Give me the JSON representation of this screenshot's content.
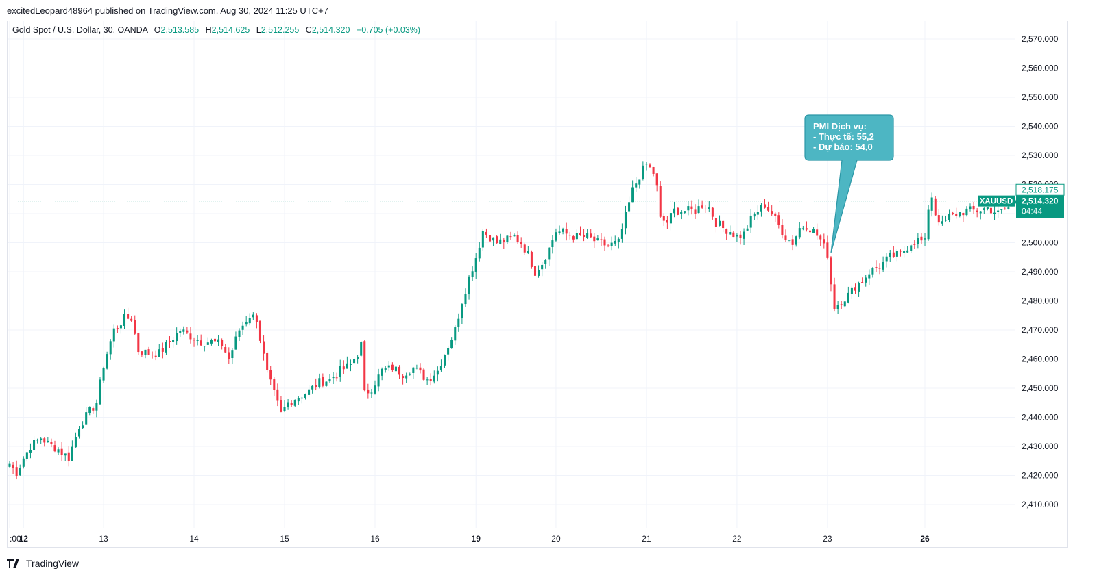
{
  "publisher_line": "excitedLeopard48964 published on TradingView.com, Aug 30, 2024 11:25 UTC+7",
  "legend": {
    "symbol": "Gold Spot / U.S. Dollar, 30, OANDA",
    "o_label": "O",
    "o_value": "2,513.585",
    "h_label": "H",
    "h_value": "2,514.625",
    "l_label": "L",
    "l_value": "2,512.255",
    "c_label": "C",
    "c_value": "2,514.320",
    "change": "+0.705 (+0.03%)"
  },
  "footer": {
    "brand": "TradingView"
  },
  "colors": {
    "up": "#089981",
    "down": "#f23645",
    "callout": "#4db6c3",
    "grid": "#f0f3fa"
  },
  "chart_data": {
    "type": "candlestick",
    "symbol": "XAUUSD",
    "y_ticks": [
      "2,570.000",
      "2,560.000",
      "2,550.000",
      "2,540.000",
      "2,530.000",
      "2,520.000",
      "2,510.000",
      "2,500.000",
      "2,490.000",
      "2,480.000",
      "2,470.000",
      "2,460.000",
      "2,450.000",
      "2,440.000",
      "2,430.000",
      "2,420.000",
      "2,410.000"
    ],
    "ylim": [
      2402,
      2574
    ],
    "x_ticks": [
      {
        "label": ":00",
        "x": 0,
        "bold": false
      },
      {
        "label": "12",
        "x": 4,
        "bold": true
      },
      {
        "label": "13",
        "x": 27,
        "bold": false
      },
      {
        "label": "14",
        "x": 53,
        "bold": false
      },
      {
        "label": "15",
        "x": 79,
        "bold": false
      },
      {
        "label": "16",
        "x": 105,
        "bold": false
      },
      {
        "label": "19",
        "x": 134,
        "bold": true
      },
      {
        "label": "20",
        "x": 157,
        "bold": false
      },
      {
        "label": "21",
        "x": 183,
        "bold": false
      },
      {
        "label": "22",
        "x": 209,
        "bold": false
      },
      {
        "label": "23",
        "x": 235,
        "bold": false
      },
      {
        "label": "26",
        "x": 263,
        "bold": true
      }
    ],
    "x_range": [
      0,
      289
    ],
    "current_price": 2514.32,
    "price_label": "2,514.320",
    "countdown": "04:44",
    "high_marker_value": 2518.175,
    "high_marker_label": "2,518.175",
    "close_anchors": [
      [
        0,
        2424
      ],
      [
        2,
        2421
      ],
      [
        4,
        2426
      ],
      [
        6,
        2430
      ],
      [
        9,
        2433
      ],
      [
        11,
        2431
      ],
      [
        14,
        2429
      ],
      [
        17,
        2426
      ],
      [
        20,
        2437
      ],
      [
        23,
        2442
      ],
      [
        25,
        2445
      ],
      [
        27,
        2458
      ],
      [
        30,
        2470
      ],
      [
        33,
        2474
      ],
      [
        35,
        2474
      ],
      [
        37,
        2463
      ],
      [
        40,
        2462
      ],
      [
        43,
        2462
      ],
      [
        46,
        2466
      ],
      [
        49,
        2470
      ],
      [
        52,
        2468
      ],
      [
        55,
        2466
      ],
      [
        58,
        2466
      ],
      [
        61,
        2465
      ],
      [
        63,
        2460
      ],
      [
        66,
        2470
      ],
      [
        69,
        2475
      ],
      [
        71,
        2474
      ],
      [
        72,
        2467
      ],
      [
        74,
        2455
      ],
      [
        76,
        2448
      ],
      [
        78,
        2441
      ],
      [
        80,
        2445
      ],
      [
        83,
        2447
      ],
      [
        86,
        2449
      ],
      [
        89,
        2452
      ],
      [
        92,
        2453
      ],
      [
        95,
        2456
      ],
      [
        98,
        2458
      ],
      [
        100,
        2462
      ],
      [
        101,
        2465
      ],
      [
        102,
        2448
      ],
      [
        104,
        2450
      ],
      [
        107,
        2456
      ],
      [
        110,
        2457
      ],
      [
        113,
        2455
      ],
      [
        116,
        2457
      ],
      [
        118,
        2455
      ],
      [
        120,
        2453
      ],
      [
        123,
        2456
      ],
      [
        125,
        2462
      ],
      [
        128,
        2470
      ],
      [
        130,
        2480
      ],
      [
        132,
        2488
      ],
      [
        134,
        2495
      ],
      [
        136,
        2504
      ],
      [
        138,
        2502
      ],
      [
        140,
        2500
      ],
      [
        143,
        2501
      ],
      [
        145,
        2502
      ],
      [
        147,
        2500
      ],
      [
        149,
        2496
      ],
      [
        151,
        2490
      ],
      [
        153,
        2493
      ],
      [
        155,
        2498
      ],
      [
        157,
        2504
      ],
      [
        160,
        2503
      ],
      [
        163,
        2502
      ],
      [
        166,
        2502
      ],
      [
        169,
        2500
      ],
      [
        172,
        2499
      ],
      [
        175,
        2500
      ],
      [
        177,
        2509
      ],
      [
        179,
        2518
      ],
      [
        181,
        2523
      ],
      [
        183,
        2527
      ],
      [
        185,
        2524
      ],
      [
        186,
        2519
      ],
      [
        187,
        2508
      ],
      [
        189,
        2507
      ],
      [
        191,
        2511
      ],
      [
        194,
        2511
      ],
      [
        197,
        2511
      ],
      [
        199,
        2513
      ],
      [
        201,
        2512
      ],
      [
        203,
        2507
      ],
      [
        205,
        2505
      ],
      [
        207,
        2504
      ],
      [
        209,
        2502
      ],
      [
        211,
        2503
      ],
      [
        213,
        2508
      ],
      [
        215,
        2511
      ],
      [
        217,
        2513
      ],
      [
        219,
        2510
      ],
      [
        221,
        2506
      ],
      [
        223,
        2502
      ],
      [
        225,
        2500
      ],
      [
        227,
        2505
      ],
      [
        229,
        2506
      ],
      [
        231,
        2504
      ],
      [
        233,
        2501
      ],
      [
        235,
        2496
      ],
      [
        236,
        2486
      ],
      [
        237,
        2478
      ],
      [
        239,
        2480
      ],
      [
        241,
        2482
      ],
      [
        243,
        2485
      ],
      [
        245,
        2487
      ],
      [
        247,
        2490
      ],
      [
        250,
        2492
      ],
      [
        253,
        2495
      ],
      [
        256,
        2496
      ],
      [
        259,
        2500
      ],
      [
        261,
        2501
      ],
      [
        263,
        2500
      ],
      [
        264,
        2512
      ],
      [
        265,
        2516
      ],
      [
        266,
        2510
      ],
      [
        268,
        2506
      ],
      [
        270,
        2509
      ],
      [
        272,
        2510
      ],
      [
        275,
        2511
      ],
      [
        278,
        2511
      ],
      [
        281,
        2512
      ],
      [
        284,
        2510
      ],
      [
        287,
        2512
      ],
      [
        289,
        2514.3
      ]
    ],
    "callout": {
      "lines": [
        "PMI Dịch vụ:",
        "- Thực tế: 55,2",
        "- Dự báo: 54,0"
      ],
      "anchor_x": 236,
      "anchor_y": 2496.5
    }
  }
}
